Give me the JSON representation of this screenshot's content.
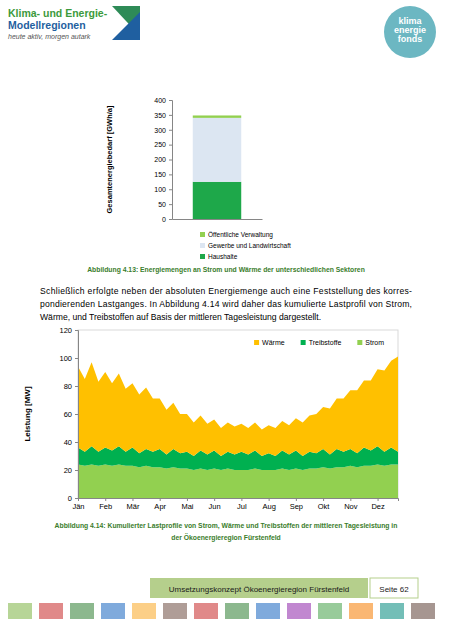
{
  "header": {
    "logo_left": [
      "Klima- und Energie-",
      "Modellregionen",
      "heute aktiv, morgen autark"
    ],
    "logo_right": [
      "klima",
      "energie",
      "fonds"
    ]
  },
  "chart_data": [
    {
      "type": "bar",
      "stacked": true,
      "y_label": "Gesamtenergiebedarf [GWh/a]",
      "categories": [
        null
      ],
      "series": [
        {
          "name": "Öffentliche Verwaltung",
          "color": "#92d050",
          "values": [
            8
          ]
        },
        {
          "name": "Gewerbe und Landwirtschaft",
          "color": "#dce6f2",
          "values": [
            215
          ]
        },
        {
          "name": "Haushalte",
          "color": "#1ea84a",
          "values": [
            125
          ]
        }
      ],
      "ylim": [
        0,
        400
      ],
      "yticks": [
        0,
        50,
        100,
        150,
        200,
        250,
        300,
        350,
        400
      ],
      "legend": "bottom",
      "tick_labels": "y"
    },
    {
      "type": "area",
      "stacked": true,
      "y_label": "Leistung [MW]",
      "categories": [
        "Jän",
        null,
        null,
        null,
        "Feb",
        null,
        null,
        null,
        "Mär",
        null,
        null,
        null,
        "Apr",
        null,
        null,
        null,
        "Mai",
        null,
        null,
        null,
        "Jun",
        null,
        null,
        null,
        "Jul",
        null,
        null,
        null,
        "Aug",
        null,
        null,
        null,
        "Sep",
        null,
        null,
        null,
        "Okt",
        null,
        null,
        null,
        "Nov",
        null,
        null,
        null,
        "Dez",
        null,
        null,
        null
      ],
      "series": [
        {
          "name": "Wärme",
          "color": "#ffc000",
          "values": [
            58,
            52,
            60,
            50,
            54,
            48,
            52,
            45,
            46,
            42,
            44,
            38,
            36,
            32,
            33,
            28,
            27,
            24,
            25,
            22,
            22,
            20,
            21,
            20,
            20,
            19,
            20,
            19,
            20,
            20,
            21,
            21,
            23,
            24,
            26,
            28,
            30,
            33,
            36,
            38,
            42,
            45,
            48,
            50,
            55,
            58,
            62,
            68
          ]
        },
        {
          "name": "Treibstoffe",
          "color": "#00b050",
          "values": [
            12,
            10,
            13,
            10,
            12,
            11,
            13,
            10,
            13,
            10,
            12,
            11,
            13,
            10,
            13,
            11,
            12,
            10,
            13,
            11,
            13,
            10,
            12,
            11,
            13,
            11,
            13,
            10,
            12,
            10,
            13,
            11,
            13,
            10,
            12,
            11,
            13,
            10,
            13,
            11,
            12,
            10,
            13,
            11,
            13,
            10,
            12,
            9
          ]
        },
        {
          "name": "Strom",
          "color": "#92d050",
          "values": [
            24,
            23,
            24,
            23,
            24,
            23,
            24,
            23,
            23,
            22,
            23,
            22,
            22,
            21,
            22,
            21,
            21,
            20,
            21,
            20,
            21,
            20,
            21,
            20,
            20,
            20,
            21,
            20,
            20,
            20,
            21,
            20,
            21,
            20,
            21,
            21,
            22,
            21,
            22,
            22,
            23,
            22,
            23,
            23,
            24,
            23,
            24,
            24
          ]
        }
      ],
      "ylim": [
        0,
        120
      ],
      "yticks": [
        0,
        20,
        40,
        60,
        80,
        100,
        120
      ],
      "legend": "top-right"
    }
  ],
  "captions": [
    [
      "Abbildung 4.13: Energiemengen an Strom und Wärme der unterschiedlichen Sektoren"
    ],
    [
      "Abbildung 4.14: Kumulierter Lastprofile von Strom, Wärme und Treibstoffen der mittleren Tagesleistung in",
      "der Ökoenergieregion Fürstenfeld"
    ]
  ],
  "paragraph": [
    "Schließlich erfolgte neben der absoluten Energiemenge auch eine Feststellung des korres-",
    "pondierenden Lastganges. In Abbildung 4.14 wird daher das kumulierte Lastprofil von Strom,",
    "Wärme, und Treibstoffen auf Basis der mittleren Tagesleistung dargestellt."
  ],
  "footer": {
    "title": "Umsetzungskonzept Ökoenergieregion Fürstenfeld",
    "page": "Seite 62"
  }
}
